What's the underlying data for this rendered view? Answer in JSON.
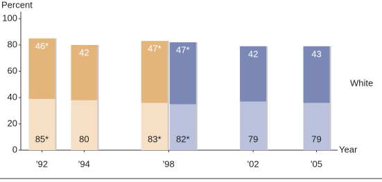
{
  "chart_data": {
    "type": "bar",
    "y_label": "Percent",
    "x_label": "Year",
    "annotation": "White",
    "x": [
      1992,
      1994,
      1998,
      2002,
      2005
    ],
    "xlim": [
      1991,
      2006
    ],
    "xticks": [
      {
        "value": 1992,
        "label": "'92"
      },
      {
        "value": 1994,
        "label": "'94"
      },
      {
        "value": 1998,
        "label": "'98"
      },
      {
        "value": 2002,
        "label": "'02"
      },
      {
        "value": 2005,
        "label": "'05"
      }
    ],
    "ylim": [
      0,
      100
    ],
    "yticks": [
      0,
      20,
      40,
      60,
      80,
      100
    ],
    "series": [
      {
        "color": "#e3b57a",
        "light_color": "#f6dfc4",
        "values": [
          85,
          80,
          83,
          null,
          null
        ],
        "value_labels": [
          "85*",
          "80",
          "83*",
          null,
          null
        ],
        "top_values": [
          46,
          42,
          47,
          null,
          null
        ],
        "top_value_labels": [
          "46*",
          "42",
          "47*",
          null,
          null
        ]
      },
      {
        "color": "#7b88b5",
        "light_color": "#bac1dd",
        "values": [
          null,
          null,
          82,
          79,
          79
        ],
        "value_labels": [
          null,
          null,
          "82*",
          "79",
          "79"
        ],
        "top_values": [
          null,
          null,
          47,
          42,
          43
        ],
        "top_value_labels": [
          null,
          null,
          "47*",
          "42",
          "43"
        ]
      }
    ]
  }
}
